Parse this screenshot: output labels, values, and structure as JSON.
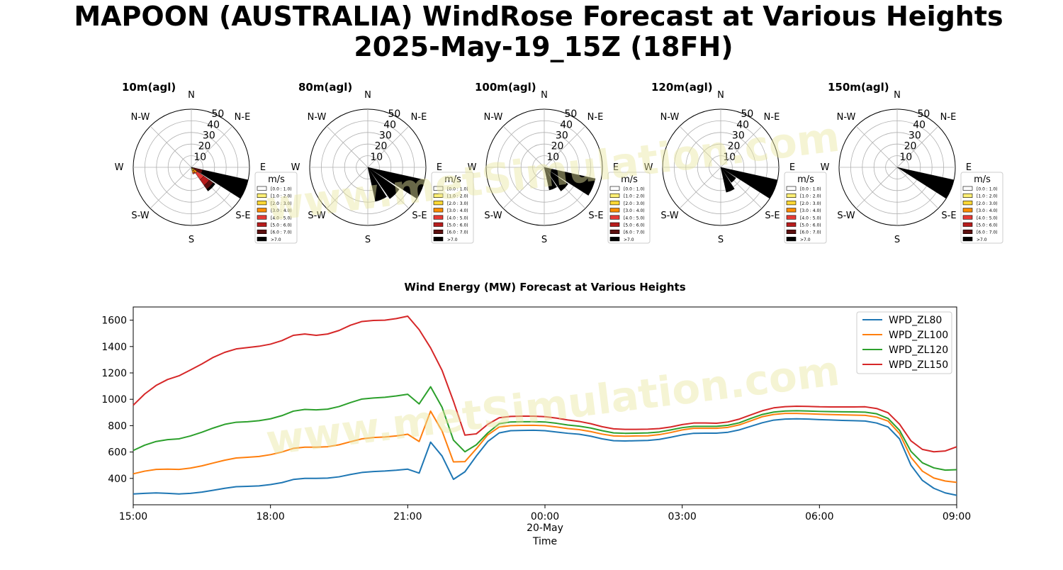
{
  "figure": {
    "title_line1": "MAPOON (AUSTRALIA) WindRose Forecast at Various Heights",
    "title_line2": "2025-May-19_15Z (18FH)",
    "watermark": "www.metSimulation.com"
  },
  "windrose": {
    "directions": [
      "N",
      "N-E",
      "E",
      "S-E",
      "S",
      "S-W",
      "W",
      "N-W"
    ],
    "radial_ticks": [
      10,
      20,
      30,
      40,
      50
    ],
    "legend_title": "m/s",
    "legend_bins": [
      {
        "label": "[0.0 : 1.0)",
        "color": "#ffffff"
      },
      {
        "label": "[1.0 : 2.0)",
        "color": "#fff176"
      },
      {
        "label": "[2.0 : 3.0)",
        "color": "#fdd835"
      },
      {
        "label": "[3.0 : 4.0)",
        "color": "#fb8c00"
      },
      {
        "label": "[4.0 : 5.0)",
        "color": "#e53935"
      },
      {
        "label": "[5.0 : 6.0)",
        "color": "#b71c1c"
      },
      {
        "label": "[6.0 : 7.0)",
        "color": "#5d0f0f"
      },
      {
        "label": ">7.0",
        "color": "#000000"
      }
    ]
  },
  "chart_data": [
    {
      "type": "windrose",
      "title": "10m(agl)",
      "rmax": 50,
      "petals": [
        {
          "dir_deg": 112.5,
          "stack": [
            [
              2,
              "#fff176"
            ],
            [
              4,
              "#fdd835"
            ],
            [
              5.5,
              "#fb8c00"
            ],
            [
              6.5,
              "#e53935"
            ],
            [
              7.5,
              "#b71c1c"
            ],
            [
              8.5,
              "#5d0f0f"
            ]
          ]
        },
        {
          "dir_deg": 135,
          "stack": [
            [
              1,
              "#fff176"
            ],
            [
              3,
              "#fdd835"
            ],
            [
              6,
              "#fb8c00"
            ],
            [
              13,
              "#e53935"
            ],
            [
              19,
              "#b71c1c"
            ],
            [
              23,
              "#5d0f0f"
            ],
            [
              25,
              "#000000"
            ]
          ]
        },
        {
          "dir_deg": 157.5,
          "stack": [
            [
              1,
              "#fff176"
            ],
            [
              3,
              "#fdd835"
            ],
            [
              5,
              "#fb8c00"
            ],
            [
              6,
              "#e53935"
            ]
          ]
        },
        {
          "dir_deg": 112.5,
          "stack": [
            [
              10,
              "#5d0f0f"
            ],
            [
              50,
              "#000000"
            ]
          ]
        }
      ]
    },
    {
      "type": "windrose",
      "title": "80m(agl)",
      "rmax": 50,
      "petals": [
        {
          "dir_deg": 112.5,
          "stack": [
            [
              50,
              "#000000"
            ]
          ]
        },
        {
          "dir_deg": 135,
          "stack": [
            [
              33,
              "#000000"
            ]
          ]
        },
        {
          "dir_deg": 157.5,
          "stack": [
            [
              30,
              "#000000"
            ]
          ]
        }
      ]
    },
    {
      "type": "windrose",
      "title": "100m(agl)",
      "rmax": 50,
      "petals": [
        {
          "dir_deg": 112.5,
          "stack": [
            [
              45,
              "#000000"
            ]
          ]
        },
        {
          "dir_deg": 135,
          "stack": [
            [
              25,
              "#000000"
            ]
          ]
        },
        {
          "dir_deg": 157.5,
          "stack": [
            [
              20,
              "#000000"
            ]
          ]
        }
      ]
    },
    {
      "type": "windrose",
      "title": "120m(agl)",
      "rmax": 50,
      "petals": [
        {
          "dir_deg": 112.5,
          "stack": [
            [
              50,
              "#000000"
            ]
          ]
        },
        {
          "dir_deg": 135,
          "stack": [
            [
              16,
              "#000000"
            ]
          ]
        },
        {
          "dir_deg": 157.5,
          "stack": [
            [
              22,
              "#000000"
            ]
          ]
        }
      ]
    },
    {
      "type": "windrose",
      "title": "150m(agl)",
      "rmax": 50,
      "petals": [
        {
          "dir_deg": 112.5,
          "stack": [
            [
              50,
              "#000000"
            ]
          ]
        }
      ]
    },
    {
      "type": "line",
      "title": "Wind Energy (MW) Forecast at Various Heights",
      "xlabel": "Time",
      "ylabel": "",
      "xlim": [
        0,
        18
      ],
      "ylim": [
        200,
        1700
      ],
      "x_ticks": [
        {
          "x": 0,
          "label": "15:00",
          "sub": ""
        },
        {
          "x": 3,
          "label": "18:00",
          "sub": ""
        },
        {
          "x": 6,
          "label": "21:00",
          "sub": ""
        },
        {
          "x": 9,
          "label": "00:00",
          "sub": "20-May"
        },
        {
          "x": 12,
          "label": "03:00",
          "sub": ""
        },
        {
          "x": 15,
          "label": "06:00",
          "sub": ""
        },
        {
          "x": 18,
          "label": "09:00",
          "sub": ""
        }
      ],
      "y_ticks": [
        400,
        600,
        800,
        1000,
        1200,
        1400,
        1600
      ],
      "legend_position": "upper right",
      "x": [
        0,
        0.25,
        0.5,
        0.75,
        1,
        1.25,
        1.5,
        1.75,
        2,
        2.25,
        2.5,
        2.75,
        3,
        3.25,
        3.5,
        3.75,
        4,
        4.25,
        4.5,
        4.75,
        5,
        5.25,
        5.5,
        5.75,
        6,
        6.25,
        6.5,
        6.75,
        7,
        7.25,
        7.5,
        7.75,
        8,
        8.25,
        8.5,
        8.75,
        9,
        9.25,
        9.5,
        9.75,
        10,
        10.25,
        10.5,
        10.75,
        11,
        11.25,
        11.5,
        11.75,
        12,
        12.25,
        12.5,
        12.75,
        13,
        13.25,
        13.5,
        13.75,
        14,
        14.25,
        14.5,
        14.75,
        15,
        15.25,
        15.5,
        15.75,
        16,
        16.25,
        16.5,
        16.75,
        17,
        17.25,
        17.5,
        17.75,
        18
      ],
      "series": [
        {
          "name": "WPD_ZL80",
          "color": "#1f77b4",
          "values": [
            282,
            287,
            290,
            287,
            282,
            287,
            296,
            310,
            325,
            337,
            340,
            343,
            353,
            368,
            392,
            400,
            400,
            402,
            412,
            430,
            445,
            452,
            456,
            462,
            470,
            440,
            675,
            570,
            393,
            450,
            570,
            680,
            745,
            762,
            764,
            765,
            762,
            752,
            742,
            735,
            720,
            700,
            686,
            684,
            686,
            688,
            696,
            712,
            730,
            742,
            743,
            743,
            750,
            768,
            795,
            822,
            842,
            850,
            852,
            850,
            846,
            843,
            840,
            838,
            835,
            820,
            790,
            700,
            500,
            385,
            325,
            290,
            272
          ]
        },
        {
          "name": "WPD_ZL100",
          "color": "#ff7f0e",
          "values": [
            435,
            455,
            468,
            470,
            468,
            478,
            495,
            517,
            538,
            555,
            560,
            566,
            580,
            600,
            628,
            637,
            637,
            640,
            655,
            678,
            700,
            710,
            714,
            722,
            735,
            680,
            910,
            760,
            525,
            527,
            625,
            730,
            790,
            800,
            802,
            803,
            800,
            790,
            778,
            770,
            755,
            736,
            722,
            720,
            722,
            723,
            732,
            748,
            768,
            780,
            780,
            780,
            787,
            806,
            837,
            868,
            885,
            893,
            893,
            890,
            887,
            884,
            882,
            880,
            878,
            865,
            835,
            740,
            560,
            455,
            403,
            380,
            370
          ]
        },
        {
          "name": "WPD_ZL120",
          "color": "#2ca02c",
          "values": [
            612,
            652,
            680,
            694,
            700,
            722,
            750,
            782,
            810,
            826,
            830,
            838,
            852,
            876,
            910,
            923,
            920,
            925,
            945,
            975,
            1002,
            1010,
            1015,
            1025,
            1038,
            965,
            1095,
            940,
            690,
            602,
            655,
            745,
            815,
            828,
            830,
            830,
            828,
            818,
            805,
            796,
            782,
            762,
            745,
            742,
            743,
            745,
            752,
            768,
            785,
            795,
            795,
            795,
            803,
            822,
            855,
            885,
            903,
            911,
            913,
            911,
            908,
            906,
            905,
            904,
            902,
            890,
            855,
            765,
            605,
            518,
            480,
            463,
            466
          ]
        },
        {
          "name": "WPD_ZL150",
          "color": "#d62728",
          "values": [
            955,
            1040,
            1105,
            1150,
            1178,
            1222,
            1268,
            1318,
            1356,
            1382,
            1392,
            1402,
            1418,
            1445,
            1485,
            1495,
            1485,
            1495,
            1522,
            1562,
            1590,
            1598,
            1600,
            1612,
            1630,
            1528,
            1390,
            1220,
            985,
            728,
            738,
            810,
            860,
            870,
            872,
            872,
            868,
            857,
            843,
            832,
            815,
            792,
            776,
            772,
            772,
            773,
            778,
            790,
            808,
            820,
            820,
            818,
            828,
            850,
            882,
            913,
            935,
            944,
            947,
            946,
            943,
            942,
            942,
            942,
            943,
            930,
            898,
            812,
            685,
            620,
            602,
            608,
            640
          ]
        }
      ]
    }
  ]
}
